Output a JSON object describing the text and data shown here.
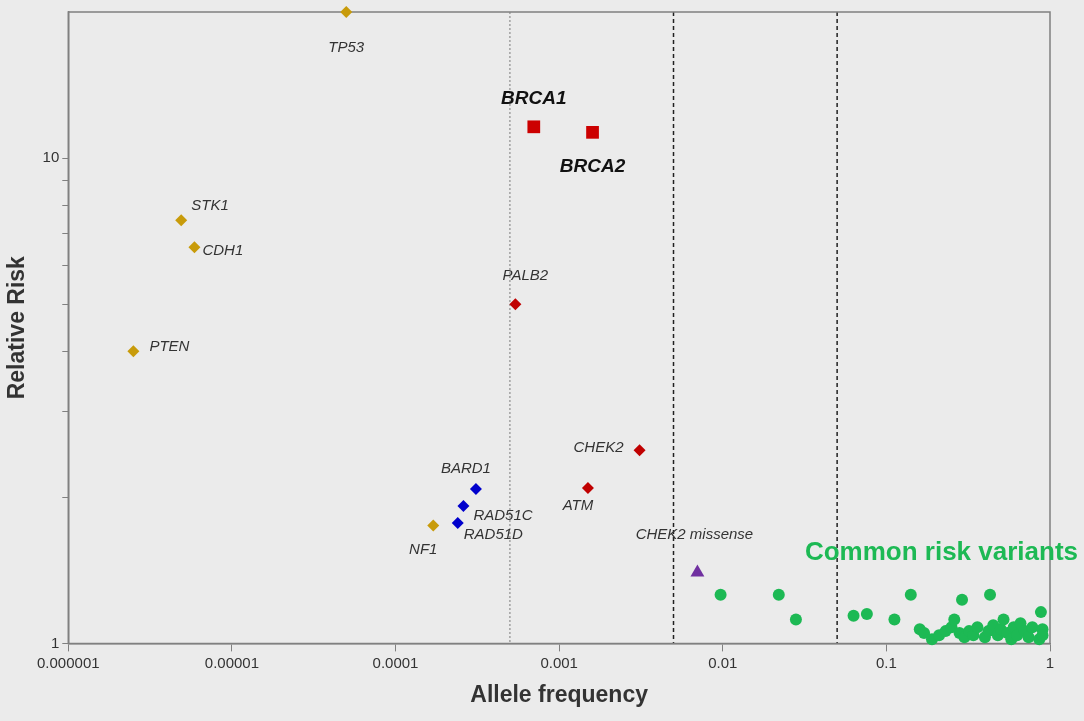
{
  "chart_data": {
    "type": "scatter",
    "xlabel": "Allele frequency",
    "ylabel": "Relative Risk",
    "log": "xy",
    "grid": false,
    "legend": false,
    "xlim": [
      1e-06,
      1
    ],
    "ylim": [
      1,
      20
    ],
    "xticks": [
      {
        "value": 1e-06,
        "label": "0.000001"
      },
      {
        "value": 1e-05,
        "label": "0.00001"
      },
      {
        "value": 0.0001,
        "label": "0.0001"
      },
      {
        "value": 0.001,
        "label": "0.001"
      },
      {
        "value": 0.01,
        "label": "0.01"
      },
      {
        "value": 0.1,
        "label": "0.1"
      },
      1
    ],
    "yticks": [
      1,
      {
        "value": 2,
        "label": null
      },
      {
        "value": 3,
        "label": null
      },
      {
        "value": 4,
        "label": null
      },
      {
        "value": 5,
        "label": null
      },
      {
        "value": 6,
        "label": null
      },
      {
        "value": 7,
        "label": null
      },
      {
        "value": 8,
        "label": null
      },
      {
        "value": 9,
        "label": null
      },
      10
    ],
    "ref_lines": [
      {
        "axis": "x",
        "value": 0.0005,
        "color": "#a0a0a0",
        "line_style": "dotted"
      },
      {
        "axis": "x",
        "value": 0.005,
        "color": "#202020",
        "line_style": "dashed"
      },
      {
        "axis": "x",
        "value": 0.05,
        "color": "#202020",
        "line_style": "dashed"
      }
    ],
    "series": [
      {
        "name": "TP53",
        "color": "#c89b0a",
        "marker": "diamond",
        "x": [
          5e-05
        ],
        "values": [
          20
        ]
      },
      {
        "name": "BRCA1",
        "color": "#cc0000",
        "marker": "square",
        "x": [
          0.0007
        ],
        "values": [
          11.6
        ]
      },
      {
        "name": "BRCA2",
        "color": "#cc0000",
        "marker": "square",
        "x": [
          0.0016
        ],
        "values": [
          11.3
        ]
      },
      {
        "name": "STK1",
        "color": "#c89b0a",
        "marker": "diamond",
        "x": [
          4.9e-06
        ],
        "values": [
          7.45
        ]
      },
      {
        "name": "CDH1",
        "color": "#c89b0a",
        "marker": "diamond",
        "x": [
          5.9e-06
        ],
        "values": [
          6.55
        ]
      },
      {
        "name": "PTEN",
        "color": "#c89b0a",
        "marker": "diamond",
        "x": [
          2.5e-06
        ],
        "values": [
          4
        ]
      },
      {
        "name": "PALB2",
        "color": "#c00000",
        "marker": "diamond",
        "x": [
          0.00054
        ],
        "values": [
          5
        ]
      },
      {
        "name": "CHEK2",
        "color": "#c00000",
        "marker": "diamond",
        "x": [
          0.0031
        ],
        "values": [
          2.5
        ]
      },
      {
        "name": "ATM",
        "color": "#c00000",
        "marker": "diamond",
        "x": [
          0.0015
        ],
        "values": [
          2.09
        ]
      },
      {
        "name": "BARD1",
        "color": "#0000cc",
        "marker": "diamond",
        "x": [
          0.00031
        ],
        "values": [
          2.08
        ]
      },
      {
        "name": "RAD51C",
        "color": "#0000cc",
        "marker": "diamond",
        "x": [
          0.00026
        ],
        "values": [
          1.92
        ]
      },
      {
        "name": "RAD51D",
        "color": "#0000cc",
        "marker": "diamond",
        "x": [
          0.00024
        ],
        "values": [
          1.77
        ]
      },
      {
        "name": "NF1",
        "color": "#c89b0a",
        "marker": "diamond",
        "x": [
          0.00017
        ],
        "values": [
          1.75
        ]
      },
      {
        "name": "CHEK2 missense",
        "color": "#7030a0",
        "marker": "triangle",
        "x": [
          0.007
        ],
        "values": [
          1.4
        ]
      },
      {
        "name": "Common risk variants",
        "color": "#1db954",
        "marker": "circle",
        "x": [
          0.0097,
          0.022,
          0.028,
          0.063,
          0.076,
          0.112,
          0.141,
          0.29,
          0.43,
          0.16,
          0.17,
          0.18,
          0.19,
          0.21,
          0.23,
          0.25,
          0.26,
          0.28,
          0.3,
          0.32,
          0.34,
          0.36,
          0.38,
          0.4,
          0.42,
          0.45,
          0.48,
          0.5,
          0.52,
          0.55,
          0.58,
          0.6,
          0.63,
          0.66,
          0.7,
          0.74,
          0.78,
          0.82,
          0.86,
          0.88,
          0.9,
          0.9
        ],
        "values": [
          1.26,
          1.26,
          1.12,
          1.14,
          1.15,
          1.12,
          1.26,
          1.23,
          1.26,
          1.07,
          1.05,
          null,
          1.02,
          1.04,
          1.06,
          1.08,
          1.12,
          1.05,
          1.03,
          1.06,
          1.04,
          1.08,
          null,
          1.03,
          1.06,
          1.09,
          1.04,
          1.07,
          1.12,
          1.05,
          1.02,
          1.08,
          1.04,
          1.1,
          1.06,
          1.03,
          1.08,
          null,
          1.02,
          1.16,
          1.07,
          1.04
        ]
      }
    ]
  }
}
